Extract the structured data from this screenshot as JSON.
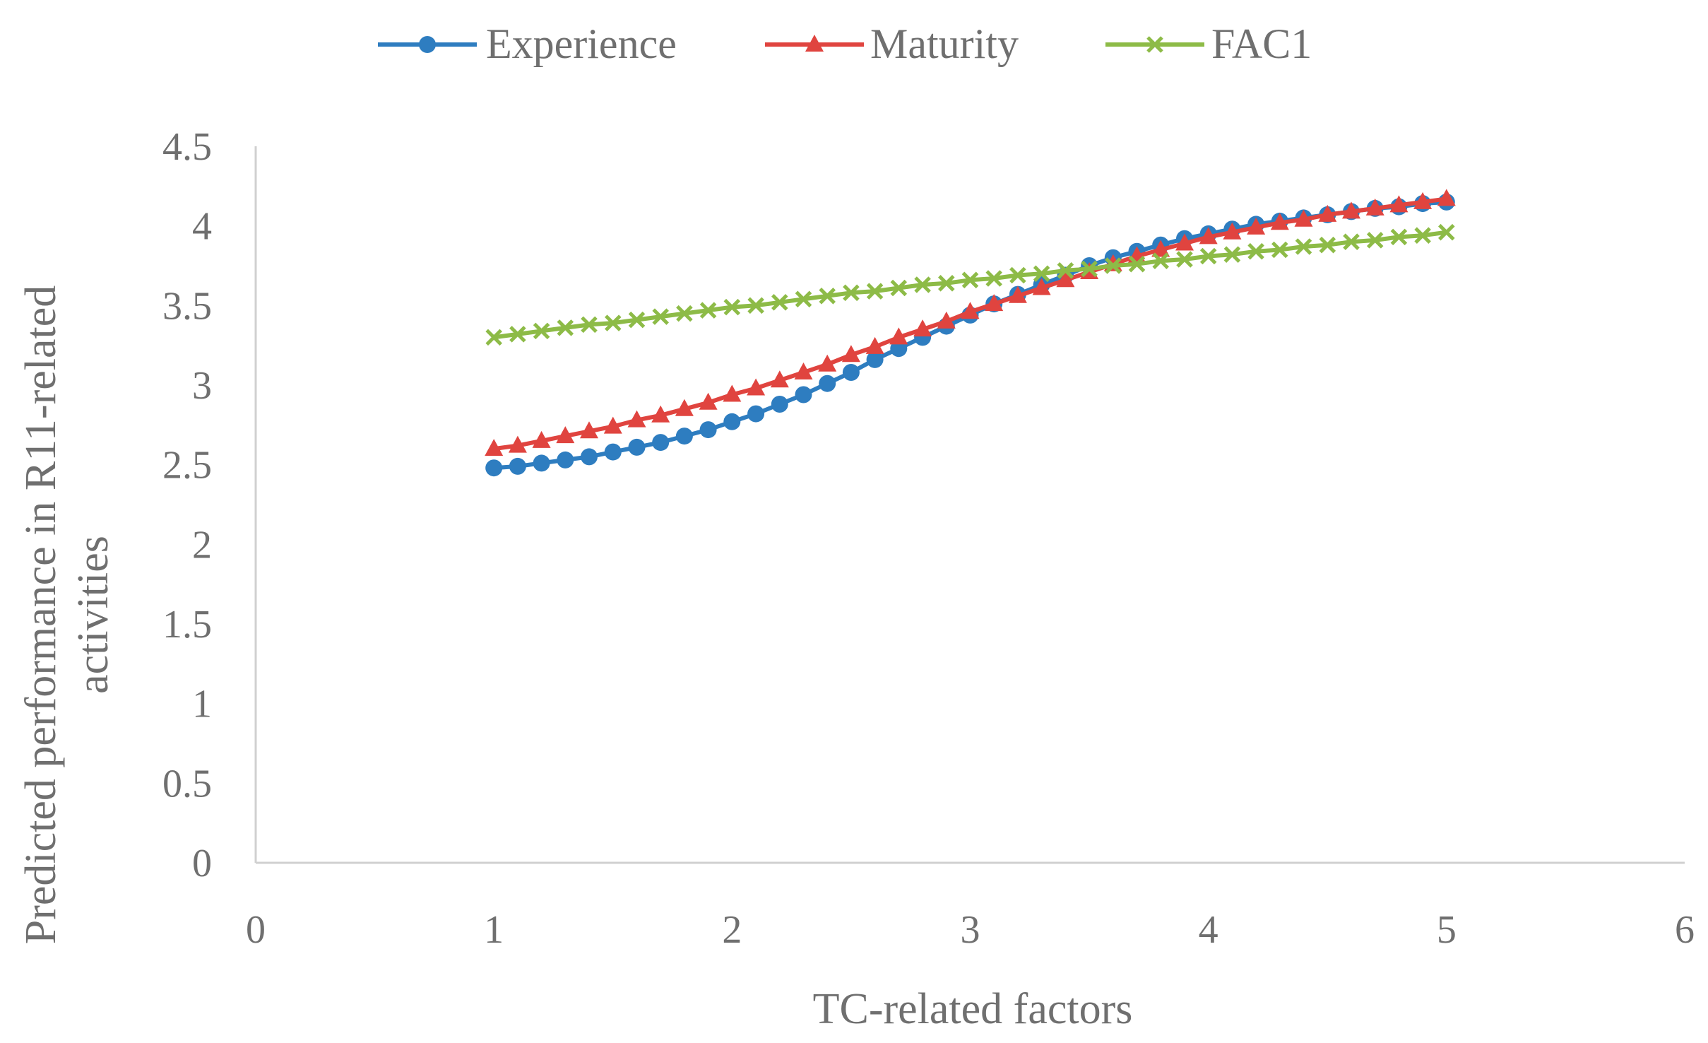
{
  "chart_data": {
    "type": "line",
    "title": "",
    "xlabel": "TC-related factors",
    "ylabel_lines": [
      "Predicted performance in R11-related",
      "activities"
    ],
    "xlim": [
      0,
      6
    ],
    "ylim": [
      0,
      4.5
    ],
    "x_ticks": [
      0,
      1,
      2,
      3,
      4,
      5,
      6
    ],
    "x_tick_labels": [
      "0",
      "1",
      "2",
      "3",
      "4",
      "5",
      "6"
    ],
    "y_ticks": [
      0,
      0.5,
      1,
      1.5,
      2,
      2.5,
      3,
      3.5,
      4,
      4.5
    ],
    "y_tick_labels": [
      "0",
      "0.5",
      "1",
      "1.5",
      "2",
      "2.5",
      "3",
      "3.5",
      "4",
      "4.5"
    ],
    "grid": false,
    "legend_position": "top-center",
    "x": [
      1.0,
      1.1,
      1.2,
      1.3,
      1.4,
      1.5,
      1.6,
      1.7,
      1.8,
      1.9,
      2.0,
      2.1,
      2.2,
      2.3,
      2.4,
      2.5,
      2.6,
      2.7,
      2.8,
      2.9,
      3.0,
      3.1,
      3.2,
      3.3,
      3.4,
      3.5,
      3.6,
      3.7,
      3.8,
      3.9,
      4.0,
      4.1,
      4.2,
      4.3,
      4.4,
      4.5,
      4.6,
      4.7,
      4.8,
      4.9,
      5.0
    ],
    "series": [
      {
        "name": "Experience",
        "color": "#2e7dc0",
        "marker": "circle",
        "values": [
          2.48,
          2.49,
          2.51,
          2.53,
          2.55,
          2.58,
          2.61,
          2.64,
          2.68,
          2.72,
          2.77,
          2.82,
          2.88,
          2.94,
          3.01,
          3.08,
          3.16,
          3.23,
          3.3,
          3.37,
          3.44,
          3.51,
          3.57,
          3.63,
          3.69,
          3.75,
          3.8,
          3.84,
          3.88,
          3.92,
          3.95,
          3.98,
          4.01,
          4.03,
          4.05,
          4.07,
          4.09,
          4.11,
          4.12,
          4.14,
          4.15
        ]
      },
      {
        "name": "Maturity",
        "color": "#e0443f",
        "marker": "triangle",
        "values": [
          2.6,
          2.62,
          2.65,
          2.68,
          2.71,
          2.74,
          2.78,
          2.81,
          2.85,
          2.89,
          2.94,
          2.98,
          3.03,
          3.08,
          3.13,
          3.19,
          3.24,
          3.3,
          3.35,
          3.4,
          3.46,
          3.51,
          3.56,
          3.61,
          3.66,
          3.71,
          3.76,
          3.81,
          3.85,
          3.89,
          3.93,
          3.96,
          3.99,
          4.02,
          4.04,
          4.07,
          4.09,
          4.11,
          4.13,
          4.15,
          4.17
        ]
      },
      {
        "name": "FAC1",
        "color": "#8dbb47",
        "marker": "x",
        "values": [
          3.3,
          3.32,
          3.34,
          3.36,
          3.38,
          3.39,
          3.41,
          3.43,
          3.45,
          3.47,
          3.49,
          3.5,
          3.52,
          3.54,
          3.56,
          3.58,
          3.59,
          3.61,
          3.63,
          3.64,
          3.66,
          3.67,
          3.69,
          3.7,
          3.72,
          3.73,
          3.75,
          3.76,
          3.78,
          3.79,
          3.81,
          3.82,
          3.84,
          3.85,
          3.87,
          3.88,
          3.9,
          3.91,
          3.93,
          3.94,
          3.96
        ]
      }
    ]
  }
}
